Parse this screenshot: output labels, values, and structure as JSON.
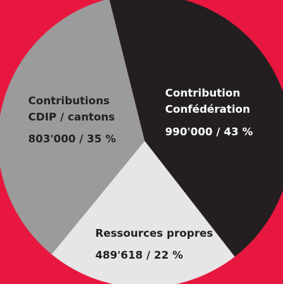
{
  "chart_data": {
    "type": "pie",
    "categories": [
      [
        "Contribution",
        "Confédération"
      ],
      [
        "Ressources propres"
      ],
      [
        "Contributions",
        "CDIP / cantons"
      ]
    ],
    "values": [
      990000,
      489618,
      803000
    ],
    "value_labels": [
      "990'000 / 43  %",
      "489'618 / 22 %",
      "803'000 / 35 %"
    ],
    "colors": [
      "#231f20",
      "#e6e6e6",
      "#9b9b9b"
    ],
    "text_colors": [
      "#ffffff",
      "#231f20",
      "#231f20"
    ],
    "background": "#e8173f"
  }
}
